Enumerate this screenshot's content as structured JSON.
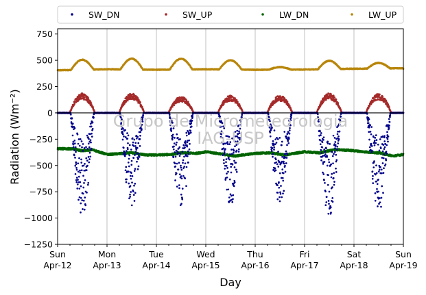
{
  "chart_data": {
    "type": "scatter",
    "title": "",
    "xlabel": "Day",
    "ylabel": "Radiation (Wm⁻²)",
    "ylim": [
      -1250,
      800
    ],
    "xlim": [
      0,
      7
    ],
    "yticks": [
      -1250,
      -1000,
      -750,
      -500,
      -250,
      0,
      250,
      500,
      750
    ],
    "ytick_labels": [
      "−1250",
      "−1000",
      "−750",
      "−500",
      "−250",
      "0",
      "250",
      "500",
      "750"
    ],
    "xticks": [
      {
        "day": "Sun",
        "date": "Apr-12"
      },
      {
        "day": "Mon",
        "date": "Apr-13"
      },
      {
        "day": "Tue",
        "date": "Apr-14"
      },
      {
        "day": "Wed",
        "date": "Apr-15"
      },
      {
        "day": "Thu",
        "date": "Apr-16"
      },
      {
        "day": "Fri",
        "date": "Apr-17"
      },
      {
        "day": "Sat",
        "date": "Apr-18"
      },
      {
        "day": "Sun",
        "date": "Apr-19"
      }
    ],
    "grid": "vertical",
    "legend_position": "top",
    "watermark": [
      "Grupo de Micrometeorologia",
      "IAG-USP"
    ],
    "series": [
      {
        "name": "SW_DN",
        "color": "#00008b",
        "daily_peak": [
          -950,
          -880,
          -890,
          -850,
          -870,
          -960,
          -900
        ],
        "night": 0
      },
      {
        "name": "SW_UP",
        "color": "#a52a2a",
        "daily_peak": [
          170,
          170,
          140,
          150,
          150,
          170,
          165
        ],
        "night": 0
      },
      {
        "name": "LW_DN",
        "color": "#006400",
        "points": [
          [
            0.0,
            -340
          ],
          [
            0.3,
            -342
          ],
          [
            0.5,
            -360
          ],
          [
            0.7,
            -350
          ],
          [
            0.9,
            -380
          ],
          [
            1.0,
            -395
          ],
          [
            1.2,
            -390
          ],
          [
            1.5,
            -380
          ],
          [
            1.8,
            -400
          ],
          [
            2.0,
            -400
          ],
          [
            2.3,
            -395
          ],
          [
            2.5,
            -380
          ],
          [
            2.8,
            -385
          ],
          [
            3.0,
            -370
          ],
          [
            3.3,
            -390
          ],
          [
            3.6,
            -410
          ],
          [
            4.0,
            -385
          ],
          [
            4.3,
            -380
          ],
          [
            4.6,
            -400
          ],
          [
            5.0,
            -370
          ],
          [
            5.3,
            -380
          ],
          [
            5.6,
            -350
          ],
          [
            5.9,
            -355
          ],
          [
            6.2,
            -370
          ],
          [
            6.5,
            -380
          ],
          [
            6.8,
            -410
          ],
          [
            7.0,
            -395
          ]
        ]
      },
      {
        "name": "LW_UP",
        "color": "#b8860b",
        "baseline": [
          405,
          415,
          410,
          415,
          410,
          412,
          420,
          425
        ],
        "daily_peak": [
          505,
          515,
          515,
          500,
          435,
          495,
          475
        ]
      }
    ]
  }
}
